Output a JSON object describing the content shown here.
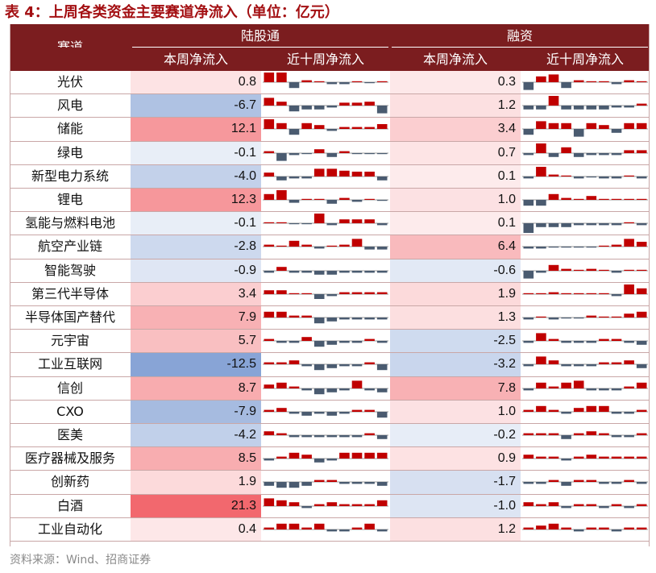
{
  "title": "表 4：上周各类资金主要赛道净流入（单位：亿元）",
  "footer": "资料来源：Wind、招商证券",
  "chart_data": {
    "type": "table",
    "header": {
      "sector": "赛道",
      "lugutong": "陆股通",
      "rongzi": "融资",
      "this_week": "本周净流入",
      "ten_weeks": "近十周净流入"
    },
    "colors": {
      "positive": "#c00000",
      "negative": "#4a5b70",
      "header_bg": "#7b1d1f",
      "title": "#a30f12"
    },
    "rows": [
      {
        "name": "光伏",
        "lgt": "0.8",
        "lgt_v": 0.8,
        "rz": "0.3",
        "rz_v": 0.3,
        "lgt_spark": [
          5,
          5,
          -3,
          1,
          0,
          -1,
          -1,
          0.5,
          -0.5,
          0.5
        ],
        "rz_spark": [
          -4,
          3,
          4,
          -3,
          1,
          0.5,
          0.5,
          -1,
          1,
          0.5
        ]
      },
      {
        "name": "风电",
        "lgt": "-6.7",
        "lgt_v": -6.7,
        "rz": "1.2",
        "rz_v": 1.2,
        "lgt_spark": [
          4,
          2,
          -3,
          -2,
          -2,
          -1,
          1.5,
          1.5,
          2,
          -4
        ],
        "rz_spark": [
          -2,
          -2,
          5,
          -2,
          -2,
          -2,
          -2,
          -1,
          -1,
          1
        ]
      },
      {
        "name": "储能",
        "lgt": "12.1",
        "lgt_v": 12.1,
        "rz": "3.4",
        "rz_v": 3.4,
        "lgt_spark": [
          5,
          3,
          -3,
          3,
          2,
          -1,
          1,
          1,
          1,
          2.5
        ],
        "rz_spark": [
          -3,
          4,
          3,
          3,
          -4,
          3,
          2,
          -2,
          3,
          3
        ]
      },
      {
        "name": "绿电",
        "lgt": "-0.1",
        "lgt_v": -0.1,
        "rz": "0.7",
        "rz_v": 0.7,
        "lgt_spark": [
          1,
          -4,
          -1,
          -0.5,
          2,
          -2,
          1,
          -0.5,
          -0.5,
          -0.5
        ],
        "rz_spark": [
          -1,
          5,
          -2,
          3,
          -2,
          -1,
          -1,
          -1,
          1.5,
          1.5
        ]
      },
      {
        "name": "新型电力系统",
        "lgt": "-4.0",
        "lgt_v": -4.0,
        "rz": "0.1",
        "rz_v": 0.1,
        "lgt_spark": [
          2,
          -2,
          -1,
          -1,
          4,
          4,
          3,
          2.5,
          2.5,
          -2
        ],
        "rz_spark": [
          -1,
          5,
          1,
          0.5,
          -1,
          -0.5,
          -1,
          -1,
          0.5,
          -1
        ]
      },
      {
        "name": "锂电",
        "lgt": "12.3",
        "lgt_v": 12.3,
        "rz": "1.0",
        "rz_v": 1.0,
        "lgt_spark": [
          3,
          5,
          -1.5,
          0.5,
          0.5,
          -2,
          1,
          -1,
          0.5,
          -0.5
        ],
        "rz_spark": [
          -3,
          -3,
          3,
          1,
          0.5,
          2,
          0.5,
          0.5,
          0.5,
          0.5
        ]
      },
      {
        "name": "氢能与燃料电池",
        "lgt": "-0.1",
        "lgt_v": -0.1,
        "rz": "0.1",
        "rz_v": 0.1,
        "lgt_spark": [
          0.5,
          0.5,
          -0.5,
          -0.5,
          5,
          -1,
          2,
          2,
          2,
          -1
        ],
        "rz_spark": [
          -5,
          -2,
          -2,
          -2,
          -1,
          -1,
          -1,
          -1,
          0.5,
          -1
        ]
      },
      {
        "name": "航空产业链",
        "lgt": "-2.8",
        "lgt_v": -2.8,
        "rz": "6.4",
        "rz_v": 6.4,
        "lgt_spark": [
          1,
          0.5,
          3,
          1,
          -1,
          0.5,
          1,
          4,
          -1.5,
          -1.5
        ],
        "rz_spark": [
          -1,
          -1,
          -0.5,
          -0.5,
          -0.5,
          -0.5,
          0.5,
          1,
          4,
          2.5
        ]
      },
      {
        "name": "智能驾驶",
        "lgt": "-0.9",
        "lgt_v": -0.9,
        "rz": "-0.6",
        "rz_v": -0.6,
        "lgt_spark": [
          -1,
          2,
          -1,
          -1,
          -2,
          -2,
          -1,
          -1,
          -1,
          -1
        ],
        "rz_spark": [
          -4,
          -1,
          3,
          1,
          0.5,
          1,
          0.5,
          -1,
          0.5,
          0.5
        ]
      },
      {
        "name": "第三代半导体",
        "lgt": "3.4",
        "lgt_v": 3.4,
        "rz": "1.9",
        "rz_v": 1.9,
        "lgt_spark": [
          2,
          2,
          0.5,
          0.5,
          -2.5,
          -1,
          1,
          1,
          1,
          1
        ],
        "rz_spark": [
          0.5,
          0.5,
          1,
          0.5,
          0.5,
          0.5,
          0.5,
          -1,
          5,
          3
        ]
      },
      {
        "name": "半导体国产替代",
        "lgt": "7.9",
        "lgt_v": 7.9,
        "rz": "1.3",
        "rz_v": 1.3,
        "lgt_spark": [
          3,
          3,
          1,
          1,
          -3,
          -2,
          -1,
          -1,
          -1,
          -1
        ],
        "rz_spark": [
          -1,
          0.5,
          -1,
          -0.5,
          -0.5,
          1,
          0.5,
          0.5,
          2,
          3
        ]
      },
      {
        "name": "元宇宙",
        "lgt": "5.7",
        "lgt_v": 5.7,
        "rz": "-2.5",
        "rz_v": -2.5,
        "lgt_spark": [
          1,
          -1,
          -1,
          2,
          -3,
          -2,
          -1,
          -1,
          1,
          -1
        ],
        "rz_spark": [
          -1,
          4,
          1,
          -1,
          -1,
          -1,
          1,
          1,
          -1,
          -2
        ]
      },
      {
        "name": "工业互联网",
        "lgt": "-12.5",
        "lgt_v": -12.5,
        "rz": "-3.2",
        "rz_v": -3.2,
        "lgt_spark": [
          1,
          1,
          2,
          -1,
          -3,
          -2,
          -1,
          -1,
          1,
          -3
        ],
        "rz_spark": [
          -1,
          4,
          2,
          -1,
          -1,
          -1,
          1,
          1,
          2,
          -2
        ]
      },
      {
        "name": "信创",
        "lgt": "8.7",
        "lgt_v": 8.7,
        "rz": "7.8",
        "rz_v": 7.8,
        "lgt_spark": [
          2,
          3,
          1,
          -1,
          -3,
          -2,
          -1,
          4,
          -1,
          -2
        ],
        "rz_spark": [
          -1,
          3,
          1,
          3,
          4,
          -1,
          -1,
          -1,
          1,
          3
        ]
      },
      {
        "name": "CXO",
        "lgt": "-7.9",
        "lgt_v": -7.9,
        "rz": "1.0",
        "rz_v": 1.0,
        "lgt_spark": [
          1,
          2,
          -1,
          -2,
          -1,
          -2,
          -1,
          1,
          1,
          -3
        ],
        "rz_spark": [
          1,
          3,
          1,
          -1,
          2,
          3,
          3,
          -1,
          -1,
          1
        ]
      },
      {
        "name": "医美",
        "lgt": "-4.2",
        "lgt_v": -4.2,
        "rz": "-0.2",
        "rz_v": -0.2,
        "lgt_spark": [
          2,
          1,
          -1,
          -1,
          -1,
          -1,
          -1,
          -1,
          1,
          -2
        ],
        "rz_spark": [
          1,
          1,
          1,
          -2,
          1,
          2,
          1,
          -1,
          -1,
          1
        ]
      },
      {
        "name": "医疗器械及服务",
        "lgt": "8.5",
        "lgt_v": 8.5,
        "rz": "0.9",
        "rz_v": 0.9,
        "lgt_spark": [
          -1,
          1,
          3,
          2,
          -2,
          -1,
          3,
          3,
          3,
          3
        ],
        "rz_spark": [
          2,
          1,
          1,
          -1,
          1,
          2,
          1,
          1,
          1,
          1
        ]
      },
      {
        "name": "创新药",
        "lgt": "1.9",
        "lgt_v": 1.9,
        "rz": "-1.7",
        "rz_v": -1.7,
        "lgt_spark": [
          -2,
          -3,
          -3,
          -2,
          1,
          1,
          -1,
          -1,
          -1,
          -2
        ],
        "rz_spark": [
          -1,
          -1,
          1,
          -2,
          1,
          1,
          -1,
          -1,
          1,
          -1
        ]
      },
      {
        "name": "白酒",
        "lgt": "21.3",
        "lgt_v": 21.3,
        "rz": "-1.0",
        "rz_v": -1.0,
        "lgt_spark": [
          4,
          3,
          2,
          -1,
          1,
          2,
          1,
          1,
          1,
          3
        ],
        "rz_spark": [
          2,
          1,
          2,
          -1,
          1,
          1,
          -1,
          1,
          -1,
          1
        ]
      },
      {
        "name": "工业自动化",
        "lgt": "0.4",
        "lgt_v": 0.4,
        "rz": "1.2",
        "rz_v": 1.2,
        "lgt_spark": [
          1,
          3,
          3,
          1,
          3,
          -1,
          -1,
          1,
          3,
          -1
        ],
        "rz_spark": [
          1,
          2,
          3,
          1,
          -1,
          1,
          1,
          -1,
          1,
          1
        ]
      }
    ]
  }
}
